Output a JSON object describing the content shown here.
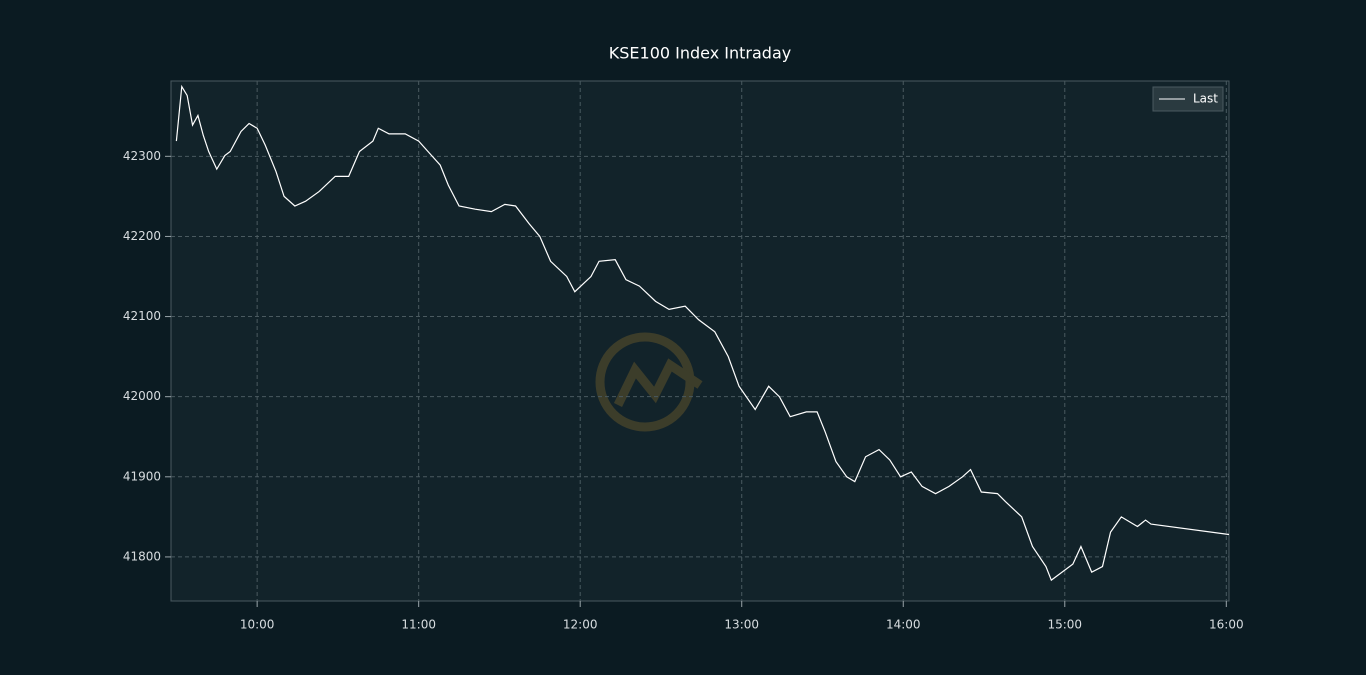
{
  "chart_data": {
    "type": "line",
    "title": "KSE100 Index Intraday",
    "series": [
      {
        "name": "Last",
        "color": "#ffffff",
        "values": [
          42319,
          42387,
          42376,
          42339,
          42351,
          42326,
          42306,
          42284,
          42301,
          42306,
          42331,
          42341,
          42335,
          42314,
          42281,
          42250,
          42238,
          42244,
          42256,
          42275,
          42275,
          42306,
          42319,
          42335,
          42328,
          42328,
          42319,
          42304,
          42289,
          42264,
          42238,
          42234,
          42231,
          42240,
          42238,
          42216,
          42200,
          42169,
          42150,
          42131,
          42150,
          42169,
          42171,
          42146,
          42138,
          42119,
          42109,
          42113,
          42096,
          42081,
          42050,
          42013,
          41984,
          42013,
          42000,
          41975,
          41981,
          41981,
          41956,
          41919,
          41900,
          41894,
          41925,
          41934,
          41921,
          41900,
          41906,
          41888,
          41879,
          41888,
          41900,
          41909,
          41881,
          41879,
          41869,
          41850,
          41813,
          41788,
          41771,
          41781,
          41791,
          41813,
          41781,
          41788,
          41831,
          41850,
          41838,
          41846,
          41841,
          41828
        ]
      }
    ],
    "x": [
      "09:30",
      "09:32",
      "09:34",
      "09:36",
      "09:38",
      "09:40",
      "09:42",
      "09:45",
      "09:48",
      "09:50",
      "09:54",
      "09:57",
      "10:00",
      "10:03",
      "10:07",
      "10:10",
      "10:14",
      "10:18",
      "10:23",
      "10:29",
      "10:34",
      "10:38",
      "10:43",
      "10:45",
      "10:49",
      "10:55",
      "11:00",
      "11:04",
      "11:08",
      "11:11",
      "11:15",
      "11:21",
      "11:27",
      "11:32",
      "11:36",
      "11:41",
      "11:45",
      "11:49",
      "11:55",
      "11:58",
      "12:04",
      "12:07",
      "12:13",
      "12:17",
      "12:22",
      "12:28",
      "12:33",
      "12:39",
      "12:44",
      "12:50",
      "12:55",
      "12:59",
      "13:05",
      "13:10",
      "13:14",
      "13:18",
      "13:24",
      "13:28",
      "13:31",
      "13:35",
      "13:39",
      "13:42",
      "13:46",
      "13:51",
      "13:55",
      "13:59",
      "14:03",
      "14:07",
      "14:12",
      "14:17",
      "14:22",
      "14:25",
      "14:29",
      "14:35",
      "14:38",
      "14:44",
      "14:48",
      "14:53",
      "14:55",
      "14:59",
      "15:03",
      "15:06",
      "15:10",
      "15:14",
      "15:17",
      "15:21",
      "15:27",
      "15:30",
      "15:32",
      "16:01"
    ],
    "xlim": [
      "09:28",
      "16:01"
    ],
    "xticks": [
      "10:00",
      "11:00",
      "12:00",
      "13:00",
      "14:00",
      "15:00",
      "16:00"
    ],
    "ylim": [
      41745,
      42394
    ],
    "yticks": [
      41800,
      41900,
      42000,
      42100,
      42200,
      42300
    ],
    "grid": true,
    "legend": "upper right"
  }
}
